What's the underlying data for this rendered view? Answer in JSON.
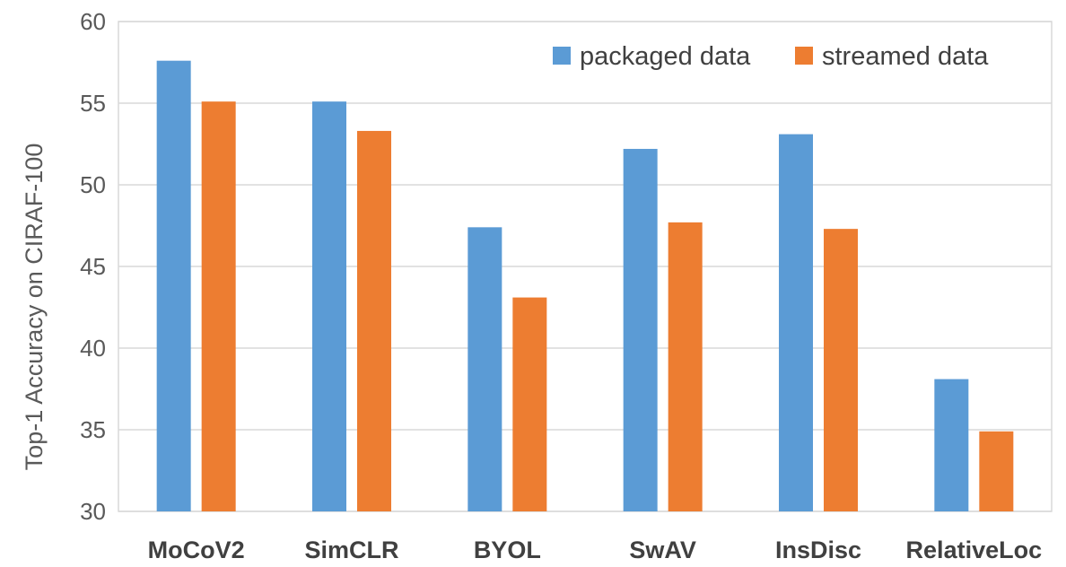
{
  "chart_data": {
    "type": "bar",
    "title": "",
    "xlabel": "",
    "ylabel": "Top-1 Accuracy on CIRAF-100",
    "ylim": [
      30,
      60
    ],
    "yticks": [
      30,
      35,
      40,
      45,
      50,
      55,
      60
    ],
    "grid": true,
    "legend_position": "top-right",
    "categories": [
      "MoCoV2",
      "SimCLR",
      "BYOL",
      "SwAV",
      "InsDisc",
      "RelativeLoc"
    ],
    "series": [
      {
        "name": "packaged data",
        "color": "#5B9BD5",
        "values": [
          57.6,
          55.1,
          47.4,
          52.2,
          53.1,
          38.1
        ]
      },
      {
        "name": "streamed data",
        "color": "#ED7D31",
        "values": [
          55.1,
          53.3,
          43.1,
          47.7,
          47.3,
          34.9
        ]
      }
    ]
  }
}
